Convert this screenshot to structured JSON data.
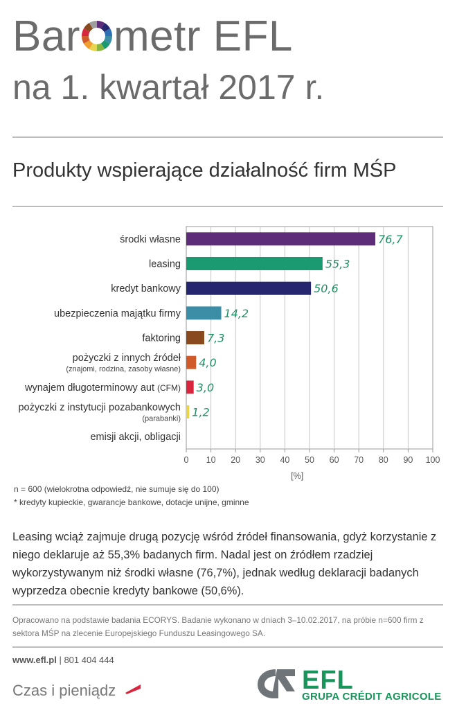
{
  "header": {
    "title_part1": "Bar",
    "title_part2": "metr EFL",
    "title_line2": "na 1. kwartał 2017 r."
  },
  "subtitle": "Produkty wspierające działalność firm MŚP",
  "chart_data": {
    "type": "bar",
    "orientation": "horizontal",
    "categories": [
      {
        "label": "środki własne",
        "sublabel": ""
      },
      {
        "label": "leasing",
        "sublabel": ""
      },
      {
        "label": "kredyt bankowy",
        "sublabel": ""
      },
      {
        "label": "ubezpieczenia majątku firmy",
        "sublabel": ""
      },
      {
        "label": "faktoring",
        "sublabel": ""
      },
      {
        "label": "pożyczki z innych źródeł",
        "sublabel": "(znajomi, rodzina, zasoby własne)"
      },
      {
        "label": "wynajem długoterminowy aut",
        "sublabel": "(CFM)"
      },
      {
        "label": "pożyczki z instytucji pozabankowych",
        "sublabel": "(parabanki)"
      },
      {
        "label": "emisji akcji, obligacji",
        "sublabel": ""
      }
    ],
    "values": [
      76.7,
      55.3,
      50.6,
      14.2,
      7.3,
      4.0,
      3.0,
      1.2,
      null
    ],
    "value_labels": [
      "76,7",
      "55,3",
      "50,6",
      "14,2",
      "7,3",
      "4,0",
      "3,0",
      "1,2",
      ""
    ],
    "colors": [
      "#5e2d79",
      "#1b9a72",
      "#26266e",
      "#3b8ea5",
      "#8a4a20",
      "#d05a2a",
      "#d7263d",
      "#e8d44d",
      "#ffffff"
    ],
    "label_color": "#1f8f63",
    "xlim": [
      0,
      100
    ],
    "xticks": [
      0,
      10,
      20,
      30,
      40,
      50,
      60,
      70,
      80,
      90,
      100
    ],
    "xlabel": "[%]",
    "grid": true
  },
  "notes": [
    "n = 600 (wielokrotna odpowiedź, nie sumuje się do 100)",
    "* kredyty kupieckie, gwarancje bankowe, dotacje unijne, gminne"
  ],
  "body_text": "Leasing wciąż zajmuje drugą pozycję wśród źródeł finansowania, gdyż korzystanie z niego deklaruje aż 55,3% badanych firm. Nadal jest on źródłem rzadziej wykorzystywanym niż środki własne (76,7%), jednak według deklaracji badanych wyprzedza obecnie kredyty bankowe (50,6%).",
  "source_text": "Opracowano na podstawie badania ECORYS. Badanie wykonano w dniach 3–10.02.2017, na próbie n=600 firm z sektora MŚP na zlecenie Europejskiego Funduszu Leasingowego SA.",
  "footer": {
    "website": "www.efl.pl",
    "separator": "|",
    "phone": "801 404 444",
    "slogan": "Czas i pieniądz",
    "brand": "EFL",
    "group": "GRUPA CRÉDIT AGRICOLE"
  },
  "colors": {
    "accent_green": "#17955a",
    "ring": [
      "#5e2d79",
      "#26266e",
      "#2c6fb5",
      "#3b8ea5",
      "#1b9a72",
      "#8ab63f",
      "#e8d44d",
      "#f0a030",
      "#d05a2a",
      "#d7263d",
      "#8a4a20",
      "#9e9e9e"
    ]
  }
}
